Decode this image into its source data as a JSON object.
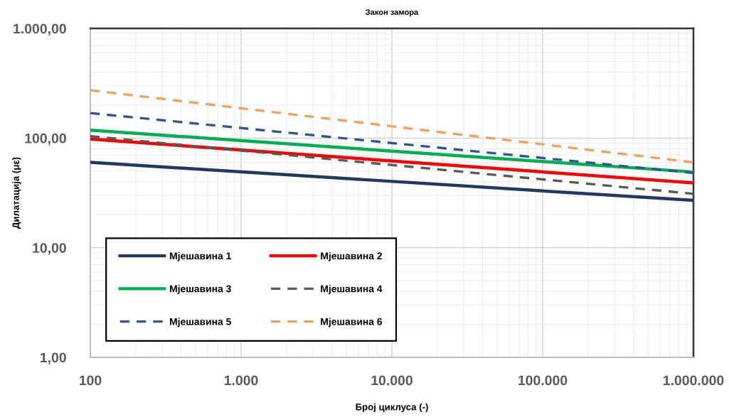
{
  "chart_data": {
    "type": "line",
    "title": "Закон замора",
    "xlabel": "Број циклуса (-)",
    "ylabel": "Дилатација (με)",
    "log": "xy",
    "x": [
      100,
      1000000
    ],
    "xlim": [
      100,
      1000000
    ],
    "xticks": [
      {
        "value": 100,
        "label": "100"
      },
      {
        "value": 1000,
        "label": "1.000"
      },
      {
        "value": 10000,
        "label": "10.000"
      },
      {
        "value": 100000,
        "label": "100.000"
      },
      {
        "value": 1000000,
        "label": "1.000.000"
      }
    ],
    "ylim": [
      1,
      1000
    ],
    "yticks": [
      {
        "value": 1,
        "label": "1,00"
      },
      {
        "value": 10,
        "label": "10,00"
      },
      {
        "value": 100,
        "label": "100,00"
      },
      {
        "value": 1000,
        "label": "1.000,00"
      }
    ],
    "grid": true,
    "legend": "bottom left",
    "marker": "none",
    "series": [
      {
        "name": "Мјешавина 1",
        "color": "#203864",
        "line_style": "solid",
        "values": [
          60,
          27
        ]
      },
      {
        "name": "Мјешавина 2",
        "color": "#ff0000",
        "line_style": "solid",
        "values": [
          98,
          39
        ]
      },
      {
        "name": "Мјешавина 3",
        "color": "#00b050",
        "line_style": "solid",
        "values": [
          118,
          49
        ]
      },
      {
        "name": "Мјешавина 4",
        "color": "#595959",
        "line_style": "dashed",
        "values": [
          104,
          31
        ]
      },
      {
        "name": "Мјешавина 5",
        "color": "#2f5597",
        "line_style": "dashed",
        "values": [
          169,
          48
        ]
      },
      {
        "name": "Мјешавина 6",
        "color": "#f5a05a",
        "line_style": "dashed",
        "values": [
          273,
          60
        ]
      }
    ]
  }
}
